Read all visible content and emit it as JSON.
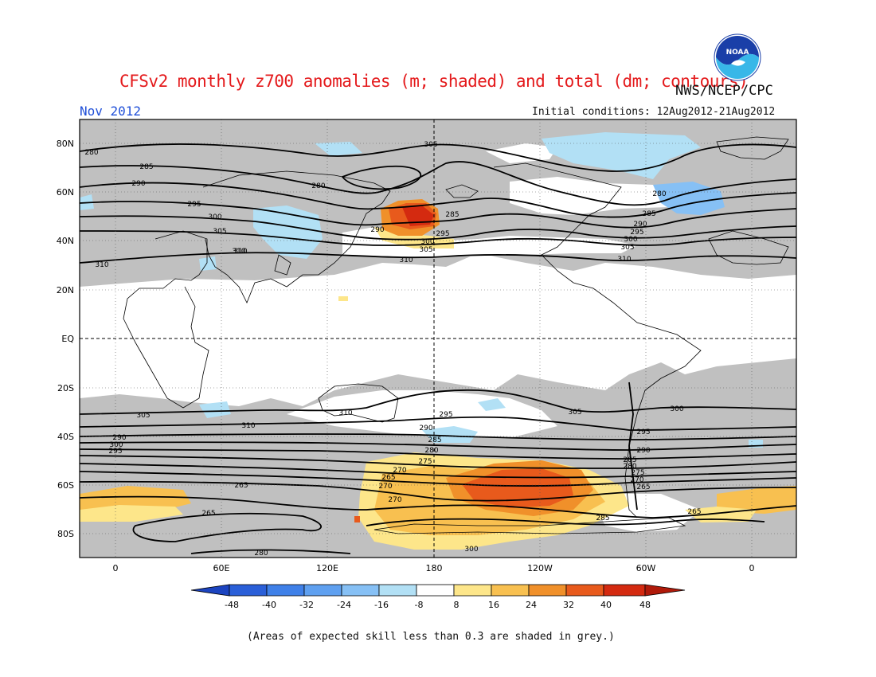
{
  "header": {
    "title": "CFSv2 monthly z700 anomalies (m; shaded) and total (dm; contours)",
    "agency": "NWS/NCEP/CPC",
    "month": "Nov 2012",
    "initial_conditions": "Initial conditions: 12Aug2012-21Aug2012",
    "logo_text": "NOAA"
  },
  "map": {
    "lat_labels": [
      "80N",
      "60N",
      "40N",
      "20N",
      "EQ",
      "20S",
      "40S",
      "60S",
      "80S"
    ],
    "lon_labels": [
      "0",
      "60E",
      "120E",
      "180",
      "120W",
      "60W",
      "0"
    ],
    "contour_labels": [
      "280",
      "285",
      "290",
      "295",
      "300",
      "305",
      "310",
      "280",
      "285",
      "290",
      "295",
      "300",
      "305",
      "310",
      "280",
      "285",
      "290",
      "295",
      "300",
      "305",
      "310",
      "310",
      "305",
      "310",
      "305",
      "310",
      "310",
      "305",
      "300",
      "295",
      "290",
      "300",
      "295",
      "290",
      "285",
      "280",
      "275",
      "270",
      "265",
      "270",
      "270",
      "265",
      "265",
      "300",
      "295",
      "290",
      "285",
      "280",
      "275",
      "270",
      "265",
      "280",
      "285",
      "265"
    ]
  },
  "colorbar": {
    "ticks": [
      "-48",
      "-40",
      "-32",
      "-24",
      "-16",
      "-8",
      "8",
      "16",
      "24",
      "32",
      "40",
      "48"
    ],
    "colors": [
      "#2a5fd8",
      "#3f80e8",
      "#5fa0f0",
      "#86c0f5",
      "#b2e0f5",
      "#ffffff",
      "#fde68a",
      "#f8c050",
      "#f0902a",
      "#e85a1c",
      "#d42a10"
    ],
    "end_low_color": "#1c44c0",
    "end_high_color": "#b01a0a"
  },
  "footer": {
    "note": "(Areas of expected skill less than 0.3 are shaded in grey.)"
  }
}
